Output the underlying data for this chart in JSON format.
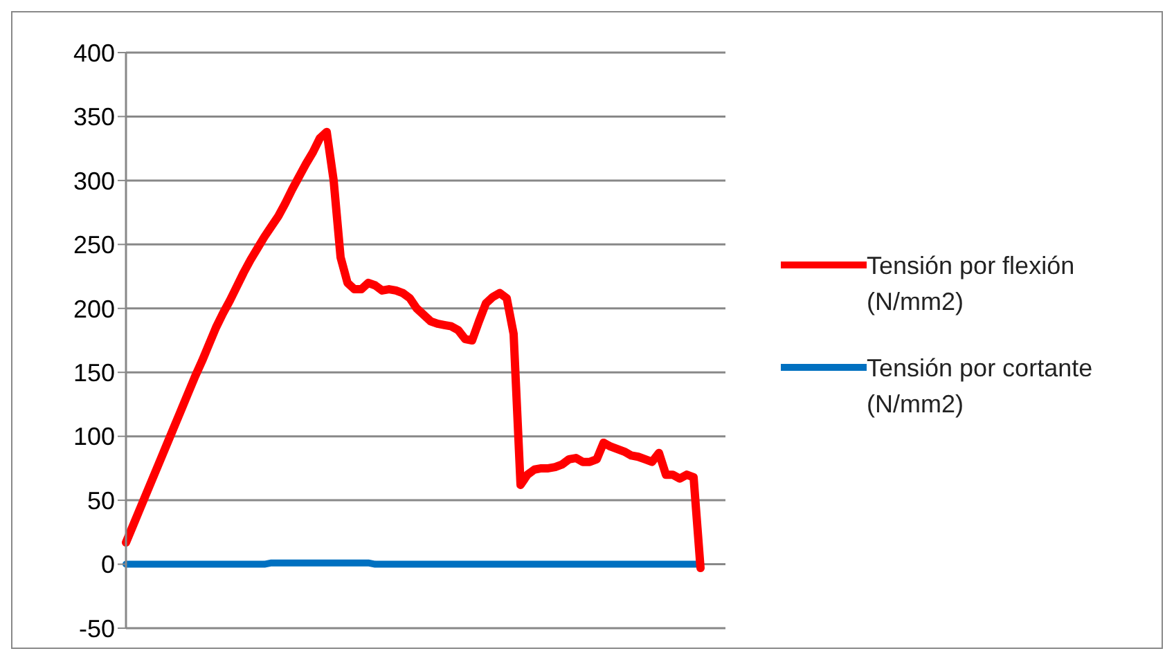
{
  "chart_data": {
    "type": "line",
    "categories": [
      null,
      null,
      null,
      null,
      null,
      null,
      null,
      null,
      null,
      null,
      null,
      null,
      null,
      null,
      null,
      null,
      null,
      null,
      null,
      null,
      null,
      null,
      null,
      null,
      null,
      null,
      null,
      null,
      null,
      null,
      null,
      null,
      null,
      null,
      null,
      null,
      null,
      null,
      null,
      null,
      null,
      null,
      null,
      null,
      null,
      null,
      null,
      null,
      null,
      null,
      null,
      null,
      null,
      null,
      null,
      null,
      null,
      null,
      null,
      null,
      null,
      null,
      null,
      null,
      null,
      null,
      null,
      null,
      null,
      null,
      null,
      null,
      null,
      null,
      null,
      null,
      null,
      null,
      null,
      null,
      null,
      null,
      null,
      null
    ],
    "series": [
      {
        "name": "Tensión por flexión (N/mm2)",
        "color": "#ff0000",
        "values": [
          17,
          30,
          43,
          56,
          69,
          82,
          95,
          108,
          121,
          134,
          147,
          159,
          172,
          185,
          196,
          206,
          217,
          228,
          238,
          247,
          256,
          264,
          272,
          282,
          293,
          303,
          313,
          322,
          333,
          338,
          300,
          240,
          220,
          215,
          215,
          220,
          218,
          214,
          215,
          214,
          212,
          208,
          200,
          195,
          190,
          188,
          187,
          186,
          183,
          176,
          175,
          190,
          204,
          209,
          212,
          208,
          180,
          62,
          70,
          74,
          75,
          75,
          76,
          78,
          82,
          83,
          80,
          80,
          82,
          95,
          92,
          90,
          88,
          85,
          84,
          82,
          80,
          87,
          70,
          70,
          67,
          70,
          68,
          -3
        ]
      },
      {
        "name": "Tensión por cortante (N/mm2)",
        "color": "#0070c0",
        "values": [
          0,
          0,
          0,
          0,
          0,
          0,
          0,
          0,
          0,
          0,
          0,
          0,
          0,
          0,
          0,
          0,
          0,
          0,
          0,
          0,
          0,
          1,
          1,
          1,
          1,
          1,
          1,
          1,
          1,
          1,
          1,
          1,
          1,
          1,
          1,
          1,
          0,
          0,
          0,
          0,
          0,
          0,
          0,
          0,
          0,
          0,
          0,
          0,
          0,
          0,
          0,
          0,
          0,
          0,
          0,
          0,
          0,
          0,
          0,
          0,
          0,
          0,
          0,
          0,
          0,
          0,
          0,
          0,
          0,
          0,
          0,
          0,
          0,
          0,
          0,
          0,
          0,
          0,
          0,
          0,
          0,
          0,
          0,
          0
        ]
      }
    ],
    "ylim": [
      -50,
      400
    ],
    "yticks": [
      -50,
      0,
      50,
      100,
      150,
      200,
      250,
      300,
      350,
      400
    ],
    "grid": "y",
    "legend": "right",
    "tick_labels": "y",
    "marker": "none",
    "line_style": "solid"
  }
}
